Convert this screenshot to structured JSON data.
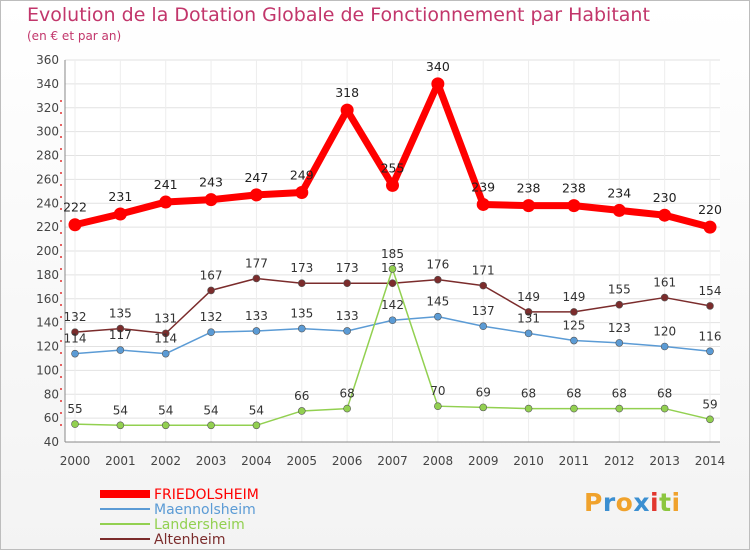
{
  "title": "Evolution de la Dotation Globale de Fonctionnement par Habitant",
  "subtitle": "(en € et par an)",
  "brand": {
    "letters": [
      "P",
      "r",
      "o",
      "x",
      "i",
      "t",
      "i"
    ],
    "colors": [
      "#f0a22c",
      "#3b8fd1",
      "#f0a22c",
      "#3b8fd1",
      "#e2372e",
      "#8cc63f",
      "#f0a22c"
    ]
  },
  "chart_data": {
    "type": "line",
    "title": "Evolution de la Dotation Globale de Fonctionnement par Habitant",
    "subtitle": "(en € et par an)",
    "xlabel": "",
    "ylabel": "",
    "grid": true,
    "legend_position": "bottom-left",
    "ylim": [
      40,
      360
    ],
    "yticks": [
      40,
      60,
      80,
      100,
      120,
      140,
      160,
      180,
      200,
      220,
      240,
      260,
      280,
      300,
      320,
      340,
      360
    ],
    "categories": [
      "2000",
      "2001",
      "2002",
      "2003",
      "2004",
      "2005",
      "2006",
      "2007",
      "2008",
      "2009",
      "2010",
      "2011",
      "2012",
      "2013",
      "2014"
    ],
    "series": [
      {
        "name": "FRIEDOLSHEIM",
        "color": "#ff0000",
        "values": [
          222,
          231,
          241,
          243,
          247,
          249,
          318,
          255,
          340,
          239,
          238,
          238,
          234,
          230,
          220
        ]
      },
      {
        "name": "Maennolsheim",
        "color": "#5b9bd5",
        "values": [
          114,
          117,
          114,
          132,
          133,
          135,
          133,
          142,
          145,
          137,
          131,
          125,
          123,
          120,
          116
        ]
      },
      {
        "name": "Landersheim",
        "color": "#92d050",
        "values": [
          55,
          54,
          54,
          54,
          54,
          66,
          68,
          185,
          70,
          69,
          68,
          68,
          68,
          68,
          59
        ]
      },
      {
        "name": "Altenheim",
        "color": "#7b2c2c",
        "values": [
          132,
          135,
          131,
          167,
          177,
          173,
          173,
          173,
          176,
          171,
          149,
          149,
          155,
          161,
          154
        ]
      }
    ]
  }
}
